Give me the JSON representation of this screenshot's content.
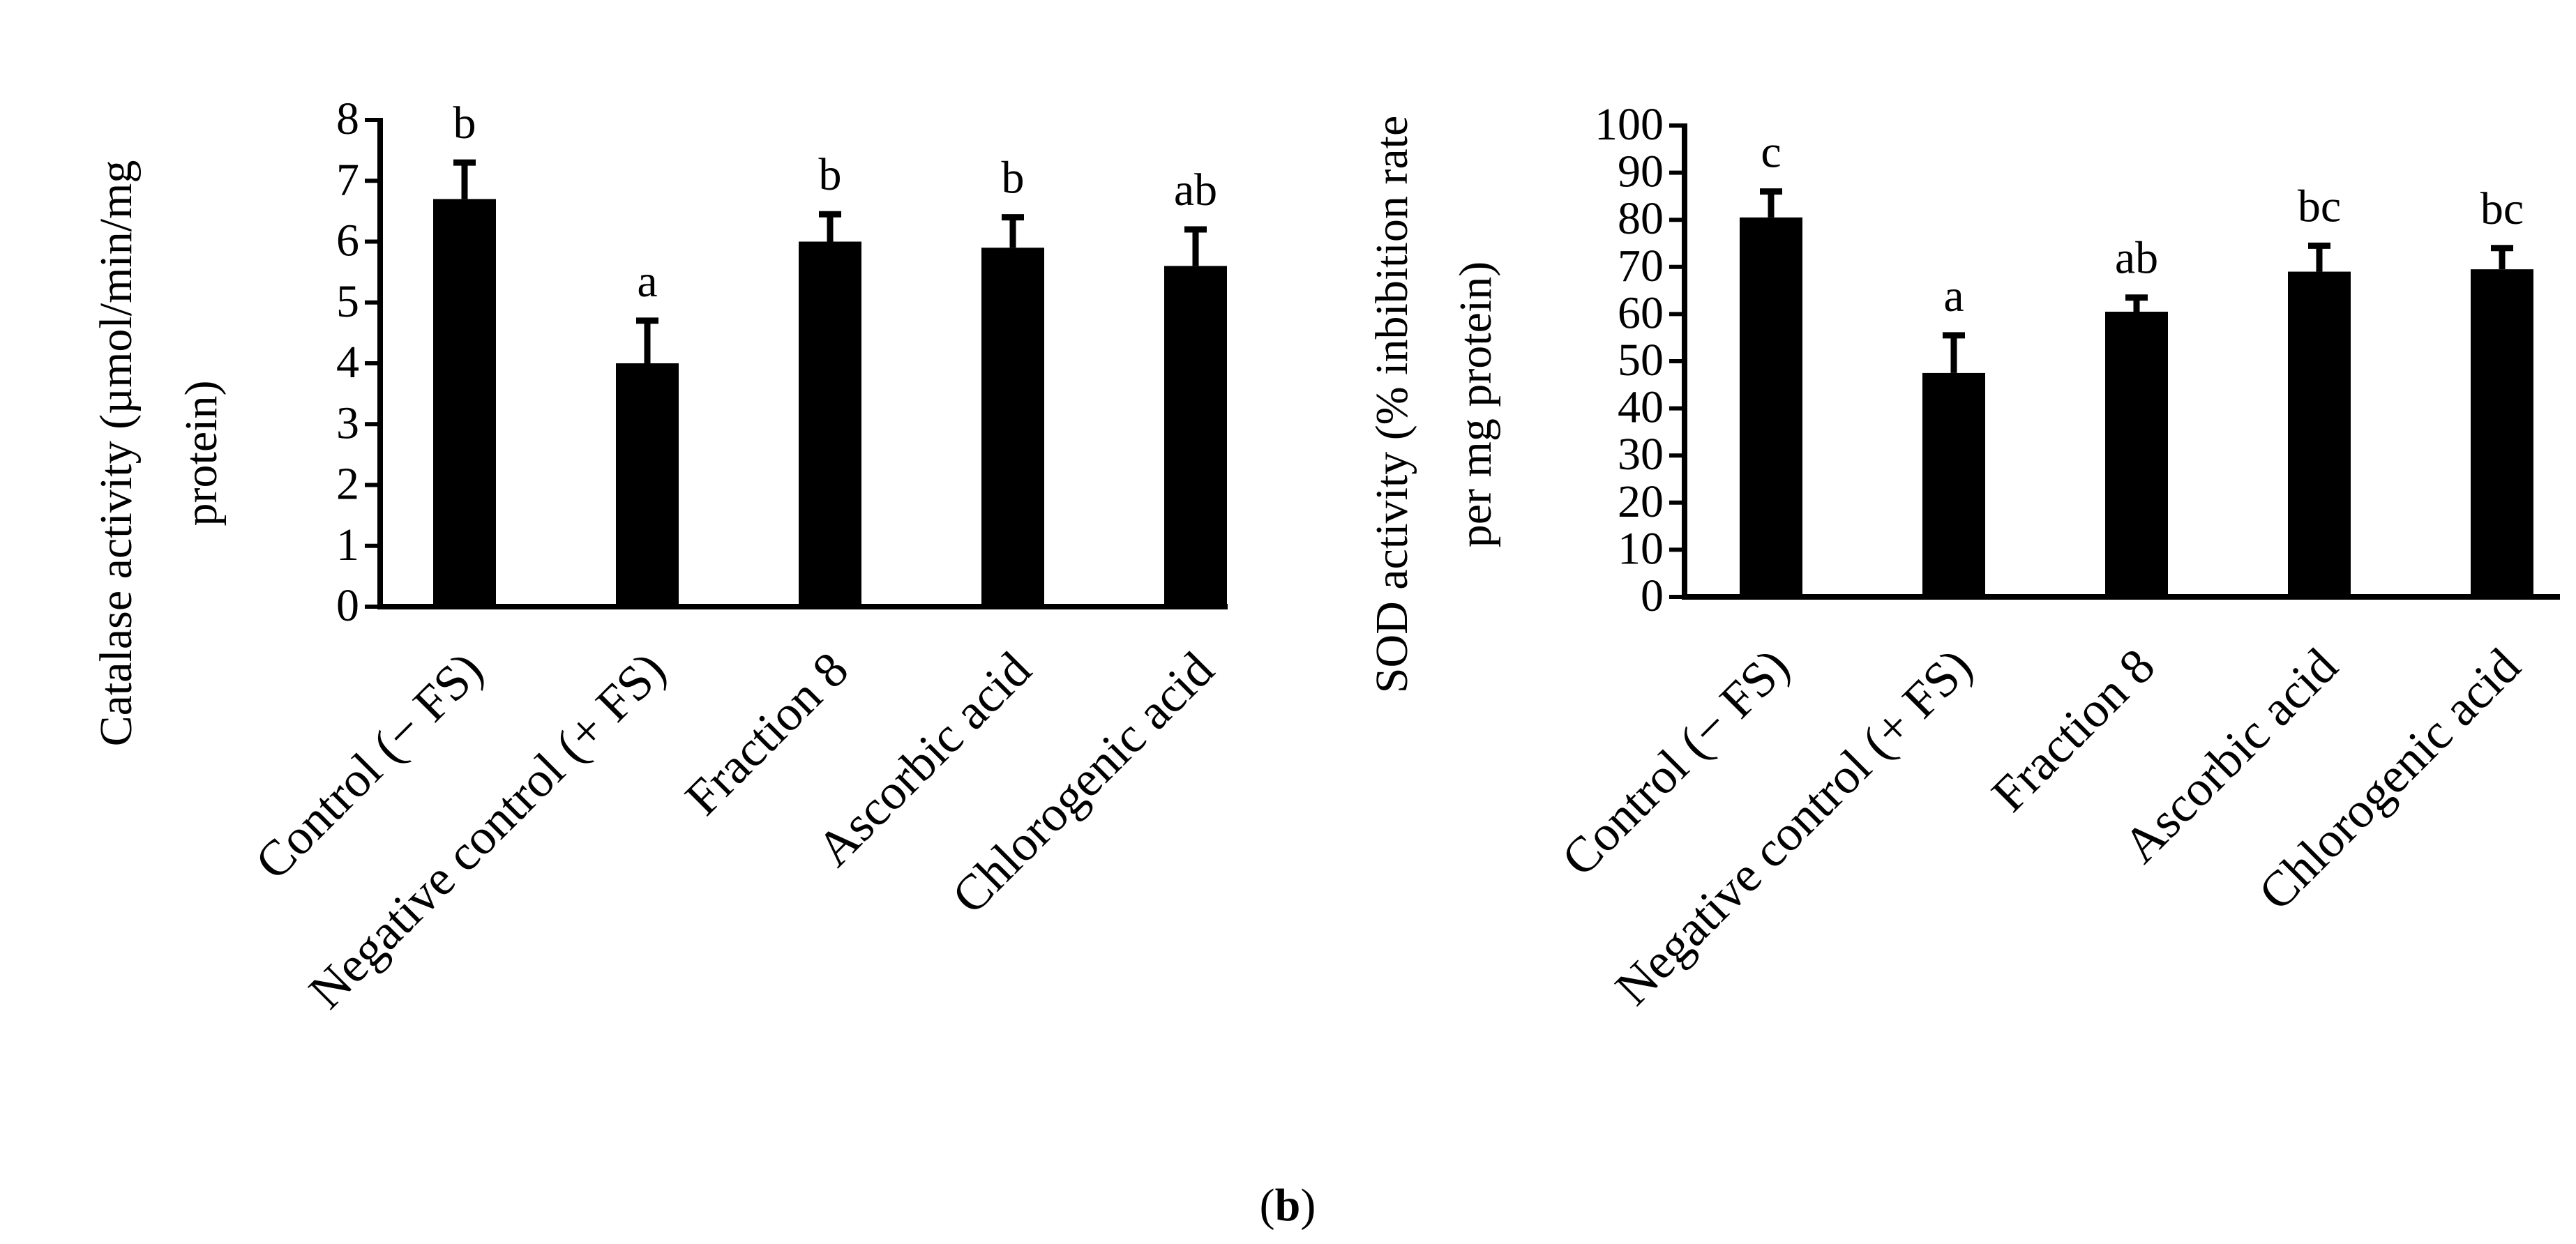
{
  "figure_caption": {
    "open": "(",
    "letter": "b",
    "close": ")"
  },
  "chart_data": [
    {
      "type": "bar",
      "title": "",
      "xlabel": "",
      "ylabel_lines": [
        "Catalase activity (µmol/min/mg",
        "protein)"
      ],
      "ylim": [
        0,
        8
      ],
      "yticks": [
        0,
        1,
        2,
        3,
        4,
        5,
        6,
        7,
        8
      ],
      "grid": false,
      "bar_color": "#000000",
      "categories": [
        "Control (− FS)",
        "Negative control (+ FS)",
        "Fraction 8",
        "Ascorbic acid",
        "Chlorogenic acid"
      ],
      "values": [
        6.7,
        4.0,
        6.0,
        5.9,
        5.6
      ],
      "errors": [
        0.6,
        0.7,
        0.45,
        0.5,
        0.6
      ],
      "significance": [
        "b",
        "a",
        "b",
        "b",
        "ab"
      ]
    },
    {
      "type": "bar",
      "title": "",
      "xlabel": "",
      "ylabel_lines": [
        "SOD activity (% inbibition rate",
        "per mg protein)"
      ],
      "ylim": [
        0,
        100
      ],
      "yticks": [
        0,
        10,
        20,
        30,
        40,
        50,
        60,
        70,
        80,
        90,
        100
      ],
      "grid": false,
      "bar_color": "#000000",
      "categories": [
        "Control (− FS)",
        "Negative control (+ FS)",
        "Fraction 8",
        "Ascorbic acid",
        "Chlorogenic acid"
      ],
      "values": [
        80.5,
        47.5,
        60.5,
        69.0,
        69.5
      ],
      "errors": [
        5.5,
        8.0,
        3.0,
        5.5,
        4.5
      ],
      "significance": [
        "c",
        "a",
        "ab",
        "bc",
        "bc"
      ]
    }
  ]
}
